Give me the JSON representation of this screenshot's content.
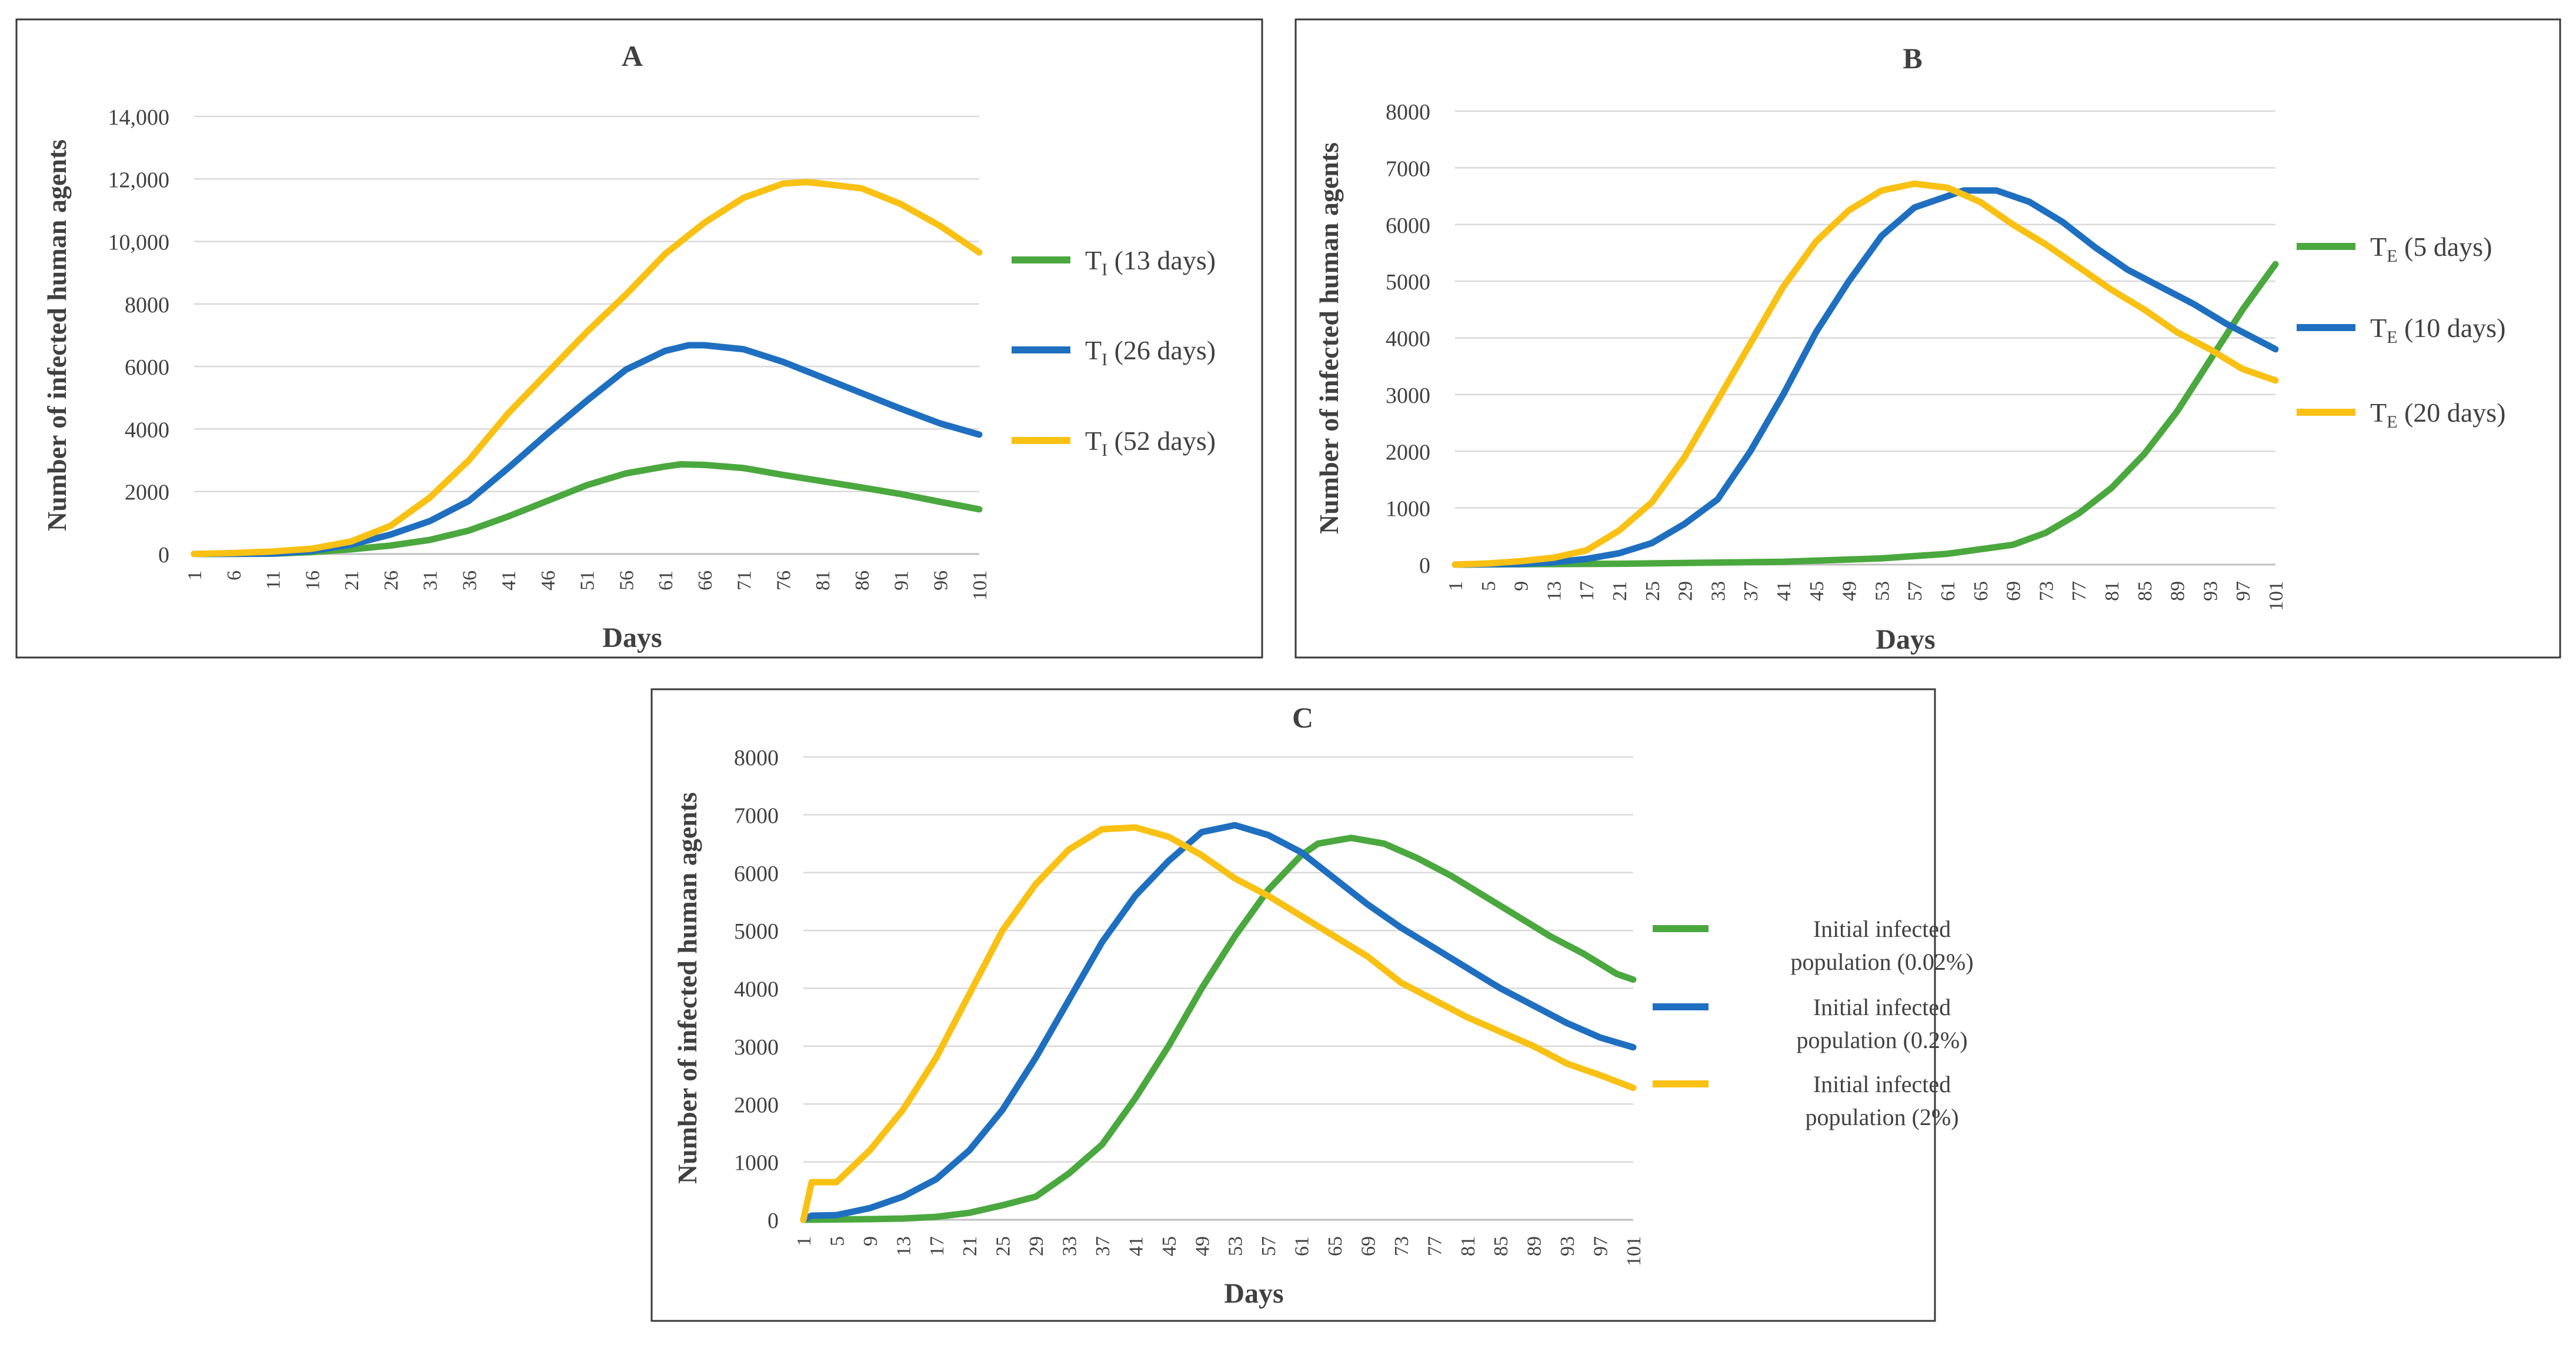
{
  "chart_data": [
    {
      "type": "line",
      "title": "A",
      "xlabel": "Days",
      "ylabel": "Number of infected human agents",
      "x_range": [
        1,
        101
      ],
      "x_ticks": [
        "1",
        "6",
        "11",
        "16",
        "21",
        "26",
        "31",
        "36",
        "41",
        "46",
        "51",
        "56",
        "61",
        "66",
        "71",
        "76",
        "81",
        "86",
        "91",
        "96",
        "101"
      ],
      "ylim": [
        0,
        14000
      ],
      "y_ticks": [
        "0",
        "2000",
        "4000",
        "6000",
        "8000",
        "10,000",
        "12,000",
        "14,000"
      ],
      "grid": true,
      "legend_position": "right",
      "series": [
        {
          "name": "TI (13 days)",
          "label_main": "T",
          "label_sub": "I",
          "label_rest": " (13 days)",
          "color": "#4aa83e",
          "points": [
            [
              1,
              0
            ],
            [
              11,
              10
            ],
            [
              16,
              60
            ],
            [
              21,
              150
            ],
            [
              26,
              270
            ],
            [
              31,
              450
            ],
            [
              36,
              750
            ],
            [
              41,
              1200
            ],
            [
              46,
              1700
            ],
            [
              51,
              2200
            ],
            [
              56,
              2580
            ],
            [
              61,
              2800
            ],
            [
              63,
              2870
            ],
            [
              66,
              2850
            ],
            [
              71,
              2750
            ],
            [
              76,
              2530
            ],
            [
              81,
              2330
            ],
            [
              86,
              2130
            ],
            [
              91,
              1920
            ],
            [
              96,
              1670
            ],
            [
              101,
              1430
            ]
          ]
        },
        {
          "name": "TI (26 days)",
          "label_main": "T",
          "label_sub": "I",
          "label_rest": " (26 days)",
          "color": "#1f6fc0",
          "points": [
            [
              1,
              0
            ],
            [
              11,
              15
            ],
            [
              16,
              100
            ],
            [
              21,
              300
            ],
            [
              26,
              620
            ],
            [
              31,
              1050
            ],
            [
              36,
              1700
            ],
            [
              41,
              2750
            ],
            [
              46,
              3850
            ],
            [
              51,
              4900
            ],
            [
              56,
              5900
            ],
            [
              61,
              6500
            ],
            [
              64,
              6680
            ],
            [
              66,
              6680
            ],
            [
              71,
              6550
            ],
            [
              76,
              6150
            ],
            [
              81,
              5650
            ],
            [
              86,
              5150
            ],
            [
              91,
              4650
            ],
            [
              96,
              4180
            ],
            [
              101,
              3820
            ]
          ]
        },
        {
          "name": "TI (52 days)",
          "label_main": "T",
          "label_sub": "I",
          "label_rest": " (52 days)",
          "color": "#f9c114",
          "points": [
            [
              1,
              0
            ],
            [
              6,
              30
            ],
            [
              11,
              80
            ],
            [
              16,
              170
            ],
            [
              21,
              400
            ],
            [
              26,
              900
            ],
            [
              31,
              1800
            ],
            [
              36,
              3000
            ],
            [
              41,
              4500
            ],
            [
              46,
              5800
            ],
            [
              51,
              7100
            ],
            [
              56,
              8300
            ],
            [
              61,
              9600
            ],
            [
              66,
              10600
            ],
            [
              71,
              11400
            ],
            [
              76,
              11850
            ],
            [
              79,
              11900
            ],
            [
              81,
              11850
            ],
            [
              86,
              11700
            ],
            [
              91,
              11200
            ],
            [
              96,
              10500
            ],
            [
              101,
              9650
            ]
          ]
        }
      ]
    },
    {
      "type": "line",
      "title": "B",
      "xlabel": "Days",
      "ylabel": "Number of infected human agents",
      "x_range": [
        1,
        101
      ],
      "x_ticks": [
        "1",
        "5",
        "9",
        "13",
        "17",
        "21",
        "25",
        "29",
        "33",
        "37",
        "41",
        "45",
        "49",
        "53",
        "57",
        "61",
        "65",
        "69",
        "73",
        "77",
        "81",
        "85",
        "89",
        "93",
        "97",
        "101"
      ],
      "ylim": [
        0,
        8000
      ],
      "y_ticks": [
        "0",
        "1000",
        "2000",
        "3000",
        "4000",
        "5000",
        "6000",
        "7000",
        "8000"
      ],
      "grid": true,
      "legend_position": "right",
      "series": [
        {
          "name": "TE (5 days)",
          "label_main": "T",
          "label_sub": "E",
          "label_rest": "  (5 days)",
          "color": "#4aa83e",
          "points": [
            [
              1,
              0
            ],
            [
              21,
              15
            ],
            [
              41,
              50
            ],
            [
              53,
              110
            ],
            [
              61,
              190
            ],
            [
              69,
              350
            ],
            [
              73,
              560
            ],
            [
              77,
              900
            ],
            [
              81,
              1350
            ],
            [
              85,
              1950
            ],
            [
              89,
              2700
            ],
            [
              93,
              3600
            ],
            [
              97,
              4500
            ],
            [
              101,
              5300
            ]
          ]
        },
        {
          "name": "TE (10 days)",
          "label_main": "T",
          "label_sub": "E",
          "label_rest": "  (10 days)",
          "color": "#1f6fc0",
          "points": [
            [
              1,
              0
            ],
            [
              9,
              10
            ],
            [
              13,
              40
            ],
            [
              17,
              100
            ],
            [
              21,
              200
            ],
            [
              25,
              380
            ],
            [
              29,
              720
            ],
            [
              33,
              1150
            ],
            [
              37,
              2000
            ],
            [
              41,
              3000
            ],
            [
              45,
              4100
            ],
            [
              49,
              5000
            ],
            [
              53,
              5800
            ],
            [
              57,
              6300
            ],
            [
              61,
              6500
            ],
            [
              63,
              6600
            ],
            [
              67,
              6600
            ],
            [
              71,
              6400
            ],
            [
              75,
              6050
            ],
            [
              79,
              5600
            ],
            [
              83,
              5200
            ],
            [
              87,
              4900
            ],
            [
              91,
              4600
            ],
            [
              95,
              4250
            ],
            [
              99,
              3950
            ],
            [
              101,
              3800
            ]
          ]
        },
        {
          "name": "TE (20 days)",
          "label_main": "T",
          "label_sub": "E",
          "label_rest": "  (20 days)",
          "color": "#f9c114",
          "points": [
            [
              1,
              0
            ],
            [
              5,
              20
            ],
            [
              9,
              60
            ],
            [
              13,
              120
            ],
            [
              17,
              250
            ],
            [
              21,
              600
            ],
            [
              25,
              1100
            ],
            [
              29,
              1900
            ],
            [
              33,
              2900
            ],
            [
              37,
              3900
            ],
            [
              41,
              4900
            ],
            [
              45,
              5700
            ],
            [
              49,
              6250
            ],
            [
              53,
              6600
            ],
            [
              57,
              6720
            ],
            [
              61,
              6650
            ],
            [
              65,
              6400
            ],
            [
              69,
              6000
            ],
            [
              73,
              5650
            ],
            [
              77,
              5250
            ],
            [
              81,
              4850
            ],
            [
              85,
              4500
            ],
            [
              89,
              4100
            ],
            [
              93,
              3800
            ],
            [
              97,
              3450
            ],
            [
              101,
              3250
            ]
          ]
        }
      ]
    },
    {
      "type": "line",
      "title": "C",
      "xlabel": "Days",
      "ylabel": "Number of infected human agents",
      "x_range": [
        1,
        101
      ],
      "x_ticks": [
        "1",
        "5",
        "9",
        "13",
        "17",
        "21",
        "25",
        "29",
        "33",
        "37",
        "41",
        "45",
        "49",
        "53",
        "57",
        "61",
        "65",
        "69",
        "73",
        "77",
        "81",
        "85",
        "89",
        "93",
        "97",
        "101"
      ],
      "ylim": [
        0,
        8000
      ],
      "y_ticks": [
        "0",
        "1000",
        "2000",
        "3000",
        "4000",
        "5000",
        "6000",
        "7000",
        "8000"
      ],
      "grid": true,
      "legend_position": "right",
      "series": [
        {
          "name": "Initial infected population (0.02%)",
          "line1": "  Initial infected",
          "line2": "population (0.02%)",
          "color": "#4aa83e",
          "points": [
            [
              1,
              0
            ],
            [
              9,
              10
            ],
            [
              13,
              20
            ],
            [
              17,
              50
            ],
            [
              21,
              120
            ],
            [
              25,
              250
            ],
            [
              29,
              400
            ],
            [
              33,
              800
            ],
            [
              37,
              1300
            ],
            [
              41,
              2100
            ],
            [
              45,
              3000
            ],
            [
              49,
              4000
            ],
            [
              53,
              4900
            ],
            [
              57,
              5700
            ],
            [
              61,
              6300
            ],
            [
              63,
              6500
            ],
            [
              67,
              6600
            ],
            [
              71,
              6500
            ],
            [
              75,
              6250
            ],
            [
              79,
              5950
            ],
            [
              83,
              5600
            ],
            [
              87,
              5250
            ],
            [
              91,
              4900
            ],
            [
              95,
              4600
            ],
            [
              99,
              4250
            ],
            [
              101,
              4150
            ]
          ]
        },
        {
          "name": "Initial infected population (0.2%)",
          "line1": "Initial infected",
          "line2": "population (0.2%)",
          "color": "#1f6fc0",
          "points": [
            [
              1,
              0
            ],
            [
              2,
              70
            ],
            [
              5,
              80
            ],
            [
              9,
              200
            ],
            [
              13,
              400
            ],
            [
              17,
              700
            ],
            [
              21,
              1200
            ],
            [
              25,
              1900
            ],
            [
              29,
              2800
            ],
            [
              33,
              3800
            ],
            [
              37,
              4800
            ],
            [
              41,
              5600
            ],
            [
              45,
              6200
            ],
            [
              49,
              6700
            ],
            [
              53,
              6820
            ],
            [
              57,
              6650
            ],
            [
              61,
              6350
            ],
            [
              65,
              5900
            ],
            [
              69,
              5450
            ],
            [
              73,
              5050
            ],
            [
              77,
              4700
            ],
            [
              81,
              4350
            ],
            [
              85,
              4000
            ],
            [
              89,
              3700
            ],
            [
              93,
              3400
            ],
            [
              97,
              3150
            ],
            [
              101,
              2980
            ]
          ]
        },
        {
          "name": "Initial infected population (2%)",
          "line1": "Initial infected",
          "line2": "population (2%)",
          "color": "#f9c114",
          "points": [
            [
              1,
              0
            ],
            [
              2,
              650
            ],
            [
              5,
              650
            ],
            [
              9,
              1200
            ],
            [
              13,
              1900
            ],
            [
              17,
              2800
            ],
            [
              21,
              3900
            ],
            [
              25,
              5000
            ],
            [
              29,
              5800
            ],
            [
              33,
              6400
            ],
            [
              37,
              6750
            ],
            [
              41,
              6780
            ],
            [
              45,
              6620
            ],
            [
              49,
              6300
            ],
            [
              53,
              5900
            ],
            [
              57,
              5600
            ],
            [
              61,
              5250
            ],
            [
              65,
              4900
            ],
            [
              69,
              4550
            ],
            [
              73,
              4100
            ],
            [
              77,
              3800
            ],
            [
              81,
              3500
            ],
            [
              85,
              3250
            ],
            [
              89,
              3000
            ],
            [
              93,
              2700
            ],
            [
              97,
              2500
            ],
            [
              101,
              2280
            ]
          ]
        }
      ]
    }
  ]
}
